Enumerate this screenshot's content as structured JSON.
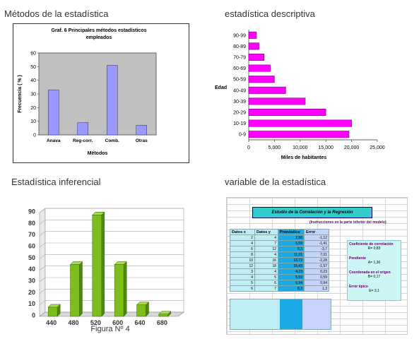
{
  "titles": {
    "tl": "Métodos de la estadística",
    "tr": "estadística descriptiva",
    "bl": "Estadística inferencial",
    "br": "variable de la estadística"
  },
  "chart_data": [
    {
      "type": "bar",
      "title": "Graf. 6  Principales métodos estadísticos empleados",
      "categories": [
        "Anava",
        "Reg-corr.",
        "Comb.",
        "Otras"
      ],
      "values": [
        33,
        9,
        51,
        7
      ],
      "xlabel": "Métodos",
      "ylabel": "Frecuencia ( % )",
      "ylim": [
        0,
        60
      ],
      "yticks": [
        0,
        10,
        20,
        30,
        40,
        50,
        60
      ],
      "colors": {
        "bar": "#9999ff",
        "plot_bg": "#c0c0c0"
      }
    },
    {
      "type": "bar",
      "orientation": "horizontal",
      "categories": [
        "0-9",
        "10-19",
        "20-29",
        "30-39",
        "40-49",
        "50-59",
        "60-69",
        "70-79",
        "80-89",
        "90-99"
      ],
      "values": [
        19500,
        20000,
        15000,
        11000,
        7200,
        5000,
        4200,
        3000,
        2000,
        1500
      ],
      "xlabel": "Miles de habitantes",
      "ylabel": "Edad",
      "xlim": [
        0,
        25000
      ],
      "xticks": [
        "0",
        "5,000",
        "10,000",
        "15,000",
        "20,000",
        "25,000"
      ],
      "colors": {
        "bar": "#ff00ff"
      }
    },
    {
      "type": "bar",
      "style": "3d",
      "categories": [
        "440",
        "480",
        "520",
        "600",
        "640",
        "680"
      ],
      "values": [
        8,
        45,
        88,
        45,
        10,
        2
      ],
      "caption": "Figura Nº 4",
      "ylim": [
        0,
        90
      ],
      "yticks": [
        0,
        10,
        20,
        30,
        40,
        50,
        60,
        70,
        80,
        90
      ],
      "colors": {
        "bar": "#7dbd1c"
      }
    }
  ],
  "spreadsheet": {
    "title": "Estudio de la Correlación y la Regresión",
    "note": "(Instrucciones en la parte inferior del modelo)",
    "headers": [
      "Datos x",
      "Datos y",
      "Pronóstico",
      "Error"
    ],
    "rows": [
      [
        "2",
        "4",
        "2,88",
        "-1,12"
      ],
      [
        "4",
        "7",
        "5,59",
        "-1,41"
      ],
      [
        "6",
        "12",
        "8,3",
        "-3,7"
      ],
      [
        "8",
        "4",
        "11,01",
        "7,01"
      ],
      [
        "10",
        "16",
        "13,72",
        "-2,28"
      ],
      [
        "12",
        "18",
        "16,43",
        "-1,57"
      ],
      [
        "3",
        "4",
        "4,23",
        "0,23"
      ],
      [
        "4",
        "5",
        "5,59",
        "0,59"
      ],
      [
        "5",
        "6",
        "6,94",
        "0,94"
      ],
      [
        "6",
        "7",
        "8,3",
        "1,3"
      ]
    ],
    "stats": [
      {
        "label": "Coeficiente de correlación",
        "value": "R= 0,83"
      },
      {
        "label": "Pendiente",
        "value": "A= 1,36"
      },
      {
        "label": "Coordenada en el origen",
        "value": "B= 0,17"
      },
      {
        "label": "Error típico",
        "value": "E= 3,1"
      }
    ]
  }
}
